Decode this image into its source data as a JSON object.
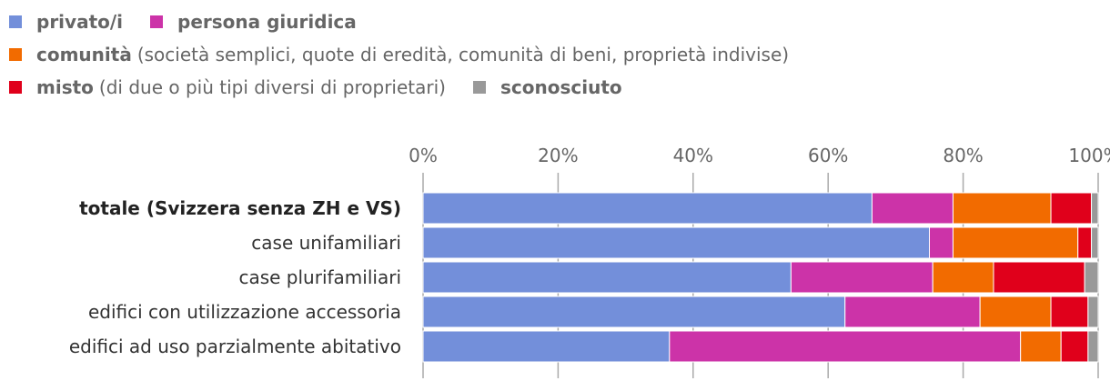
{
  "legend": {
    "items": [
      {
        "name": "privato/i",
        "desc": "",
        "color": "#738fda"
      },
      {
        "name": "persona giuridica",
        "desc": "",
        "color": "#cc33a8"
      },
      {
        "name": "comunità",
        "desc": "(società semplici, quote di eredità, comunità di beni, proprietà indivise)",
        "color": "#f26b00"
      },
      {
        "name": "misto",
        "desc": "(di due o più tipi diversi di proprietari)",
        "color": "#e0001b"
      },
      {
        "name": "sconosciuto",
        "desc": "",
        "color": "#999999"
      }
    ]
  },
  "chart_data": {
    "type": "bar",
    "orientation": "horizontal",
    "stacked": true,
    "categories": [
      "totale (Svizzera senza ZH e VS)",
      "case unifamiliari",
      "case plurifamiliari",
      "edifici con utilizzazione accessoria",
      "edifici ad uso parzialmente abitativo"
    ],
    "bold_category": "totale (Svizzera senza ZH e VS)",
    "series": [
      {
        "name": "privato/i",
        "color": "#738fda",
        "values": [
          66.5,
          75.0,
          54.5,
          62.5,
          36.5
        ]
      },
      {
        "name": "persona giuridica",
        "color": "#cc33a8",
        "values": [
          12.0,
          3.5,
          21.0,
          20.0,
          52.0
        ]
      },
      {
        "name": "comunità",
        "color": "#f26b00",
        "values": [
          14.5,
          18.5,
          9.0,
          10.5,
          6.0
        ]
      },
      {
        "name": "misto",
        "color": "#e0001b",
        "values": [
          6.0,
          2.0,
          13.5,
          5.5,
          4.0
        ]
      },
      {
        "name": "sconosciuto",
        "color": "#999999",
        "values": [
          1.0,
          1.0,
          2.0,
          1.5,
          1.5
        ]
      }
    ],
    "xlim": [
      0,
      100
    ],
    "x_ticks": [
      "0%",
      "20%",
      "40%",
      "60%",
      "80%",
      "100%"
    ],
    "grid": true
  }
}
